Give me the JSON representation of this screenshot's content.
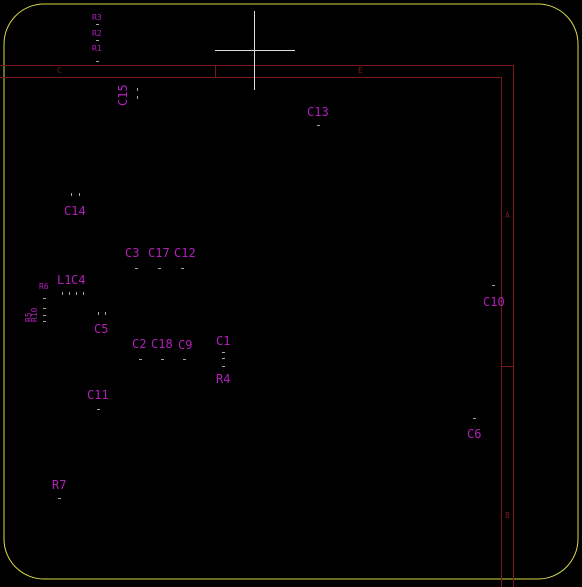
{
  "colors": {
    "background": "#000000",
    "board_outline": "#d8d84a",
    "frame": "#7a1a1a",
    "reference_text": "#b020b8",
    "pads": "#a8a8a8",
    "cursor": "#dddddd"
  },
  "frame_zones": {
    "col_c": "C",
    "col_e": "E",
    "row_a": "A",
    "row_b": "B"
  },
  "components": {
    "r3": "R3",
    "r2": "R2",
    "r1": "R1",
    "c15": "C15",
    "c13": "C13",
    "c14": "C14",
    "c3": "C3",
    "c17": "C17",
    "c12": "C12",
    "l1": "L1",
    "c4": "C4",
    "r6": "R6",
    "r5": "R5",
    "r10": "R10",
    "c5": "C5",
    "c2": "C2",
    "c18": "C18",
    "c9": "C9",
    "c1": "C1",
    "r4": "R4",
    "c10": "C10",
    "c11": "C11",
    "c6": "C6",
    "r7": "R7"
  }
}
